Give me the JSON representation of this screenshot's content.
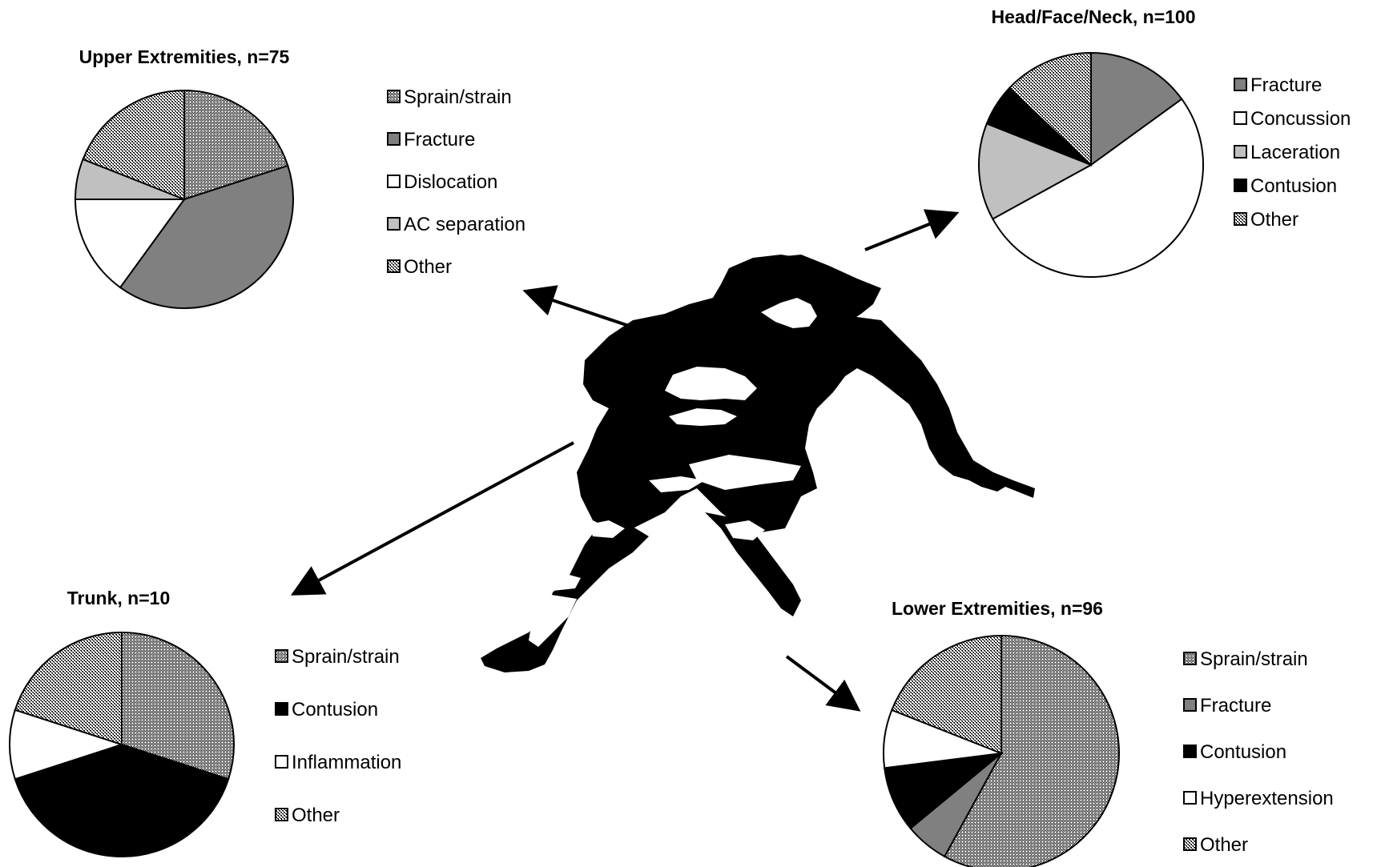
{
  "chart_data": [
    {
      "type": "pie",
      "title": "Upper Extremities, n=75",
      "legend_position": "right",
      "slices": [
        {
          "label": "Sprain/strain",
          "value": 20,
          "fill": "diag"
        },
        {
          "label": "Fracture",
          "value": 40,
          "fill": "#808080"
        },
        {
          "label": "Dislocation",
          "value": 15,
          "fill": "#ffffff"
        },
        {
          "label": "AC separation",
          "value": 6,
          "fill": "#c0c0c0"
        },
        {
          "label": "Other",
          "value": 19,
          "fill": "check"
        }
      ]
    },
    {
      "type": "pie",
      "title": "Head/Face/Neck, n=100",
      "legend_position": "right",
      "slices": [
        {
          "label": "Fracture",
          "value": 15,
          "fill": "#808080"
        },
        {
          "label": "Concussion",
          "value": 52,
          "fill": "#ffffff"
        },
        {
          "label": "Laceration",
          "value": 14,
          "fill": "#c0c0c0"
        },
        {
          "label": "Contusion",
          "value": 6,
          "fill": "#000000"
        },
        {
          "label": "Other",
          "value": 13,
          "fill": "check"
        }
      ]
    },
    {
      "type": "pie",
      "title": "Trunk, n=10",
      "legend_position": "right",
      "slices": [
        {
          "label": "Sprain/strain",
          "value": 30,
          "fill": "diag"
        },
        {
          "label": "Contusion",
          "value": 40,
          "fill": "#000000"
        },
        {
          "label": "Inflammation",
          "value": 10,
          "fill": "#ffffff"
        },
        {
          "label": "Other",
          "value": 20,
          "fill": "check"
        }
      ]
    },
    {
      "type": "pie",
      "title": "Lower Extremities, n=96",
      "legend_position": "right",
      "slices": [
        {
          "label": "Sprain/strain",
          "value": 58,
          "fill": "diag"
        },
        {
          "label": "Fracture",
          "value": 6,
          "fill": "#808080"
        },
        {
          "label": "Contusion",
          "value": 9,
          "fill": "#000000"
        },
        {
          "label": "Hyperextension",
          "value": 8,
          "fill": "#ffffff"
        },
        {
          "label": "Other",
          "value": 19,
          "fill": "check"
        }
      ]
    }
  ],
  "colors": {
    "stroke": "#000000",
    "fracture": "#808080",
    "light_gray": "#c0c0c0",
    "black": "#000000",
    "white": "#ffffff"
  },
  "illustration": {
    "icon": "rugby-player-silhouette-icon"
  }
}
